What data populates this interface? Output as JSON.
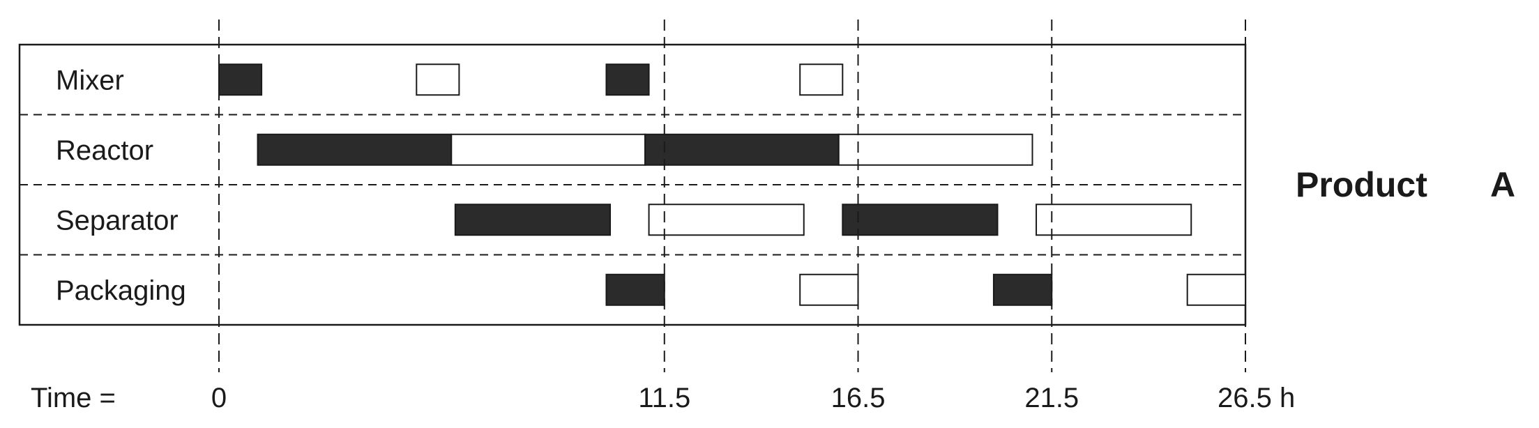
{
  "rows": [
    "Mixer",
    "Reactor",
    "Separator",
    "Packaging"
  ],
  "time_label": "Time =",
  "time_ticks": [
    {
      "t": 0,
      "label": "0"
    },
    {
      "t": 11.5,
      "label": "11.5"
    },
    {
      "t": 16.5,
      "label": "16.5"
    },
    {
      "t": 21.5,
      "label": "21.5"
    },
    {
      "t": 26.5,
      "label": "26.5 h"
    }
  ],
  "product": {
    "word": "Product",
    "letter": "A"
  },
  "colors": {
    "filled": "#2b2b2b",
    "empty": "#ffffff",
    "line": "#1a1a1a"
  },
  "tasks": [
    {
      "row": 0,
      "start": 0.0,
      "end": 1.1,
      "fill": "dark"
    },
    {
      "row": 0,
      "start": 5.1,
      "end": 6.2,
      "fill": "light"
    },
    {
      "row": 0,
      "start": 10.0,
      "end": 11.1,
      "fill": "dark"
    },
    {
      "row": 0,
      "start": 15.0,
      "end": 16.1,
      "fill": "light"
    },
    {
      "row": 1,
      "start": 1.0,
      "end": 6.0,
      "fill": "dark"
    },
    {
      "row": 1,
      "start": 6.0,
      "end": 11.0,
      "fill": "light"
    },
    {
      "row": 1,
      "start": 11.0,
      "end": 16.0,
      "fill": "dark"
    },
    {
      "row": 1,
      "start": 16.0,
      "end": 21.0,
      "fill": "light"
    },
    {
      "row": 2,
      "start": 6.1,
      "end": 10.1,
      "fill": "dark"
    },
    {
      "row": 2,
      "start": 11.1,
      "end": 15.1,
      "fill": "light"
    },
    {
      "row": 2,
      "start": 16.1,
      "end": 20.1,
      "fill": "dark"
    },
    {
      "row": 2,
      "start": 21.1,
      "end": 25.1,
      "fill": "light"
    },
    {
      "row": 3,
      "start": 10.0,
      "end": 11.5,
      "fill": "dark"
    },
    {
      "row": 3,
      "start": 15.0,
      "end": 16.5,
      "fill": "light"
    },
    {
      "row": 3,
      "start": 20.0,
      "end": 21.5,
      "fill": "dark"
    },
    {
      "row": 3,
      "start": 25.0,
      "end": 26.5,
      "fill": "light"
    }
  ]
}
